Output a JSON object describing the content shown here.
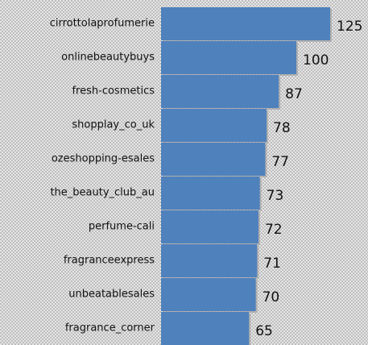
{
  "chart_data": {
    "type": "bar",
    "orientation": "horizontal",
    "categories": [
      "cirrottolaprofumerie",
      "onlinebeautybuys",
      "fresh-cosmetics",
      "shopplay_co_uk",
      "ozeshopping-esales",
      "the_beauty_club_au",
      "perfume-cali",
      "fragranceexpress",
      "unbeatablesales",
      "fragrance_corner"
    ],
    "values": [
      125,
      100,
      87,
      78,
      77,
      73,
      72,
      71,
      70,
      65
    ],
    "color": "#4f81bd"
  }
}
